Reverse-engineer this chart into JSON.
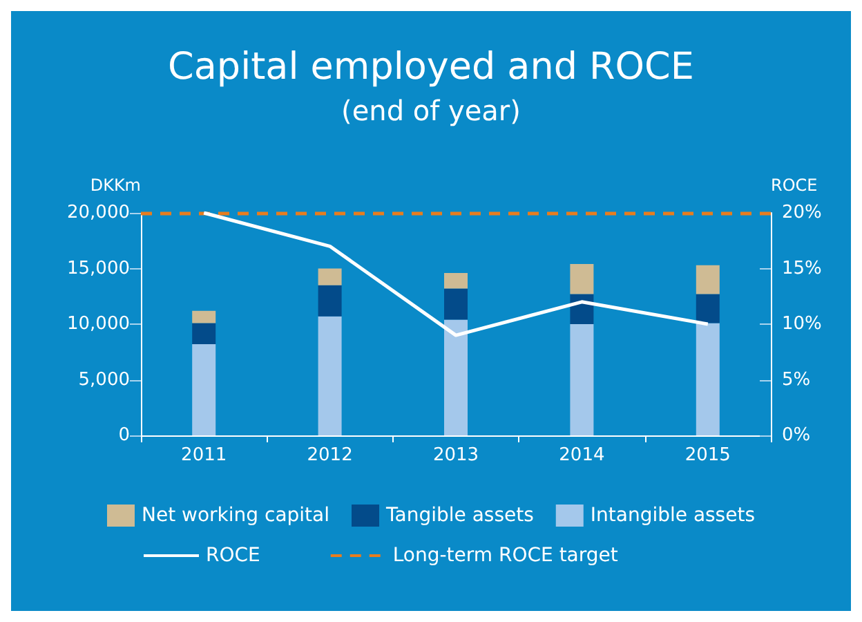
{
  "chart_data": {
    "type": "bar",
    "title": "Capital employed and ROCE",
    "subtitle": "(end of year)",
    "ylabel": "DKKm",
    "y2label": "ROCE",
    "categories": [
      "2011",
      "2012",
      "2013",
      "2014",
      "2015"
    ],
    "stacked": true,
    "series": [
      {
        "name": "Intangible assets",
        "color": "#a4c8eb",
        "values": [
          8200,
          10700,
          10400,
          10000,
          10100
        ]
      },
      {
        "name": "Tangible assets",
        "color": "#034b8a",
        "values": [
          1900,
          2800,
          2800,
          2700,
          2600
        ]
      },
      {
        "name": "Net working capital",
        "color": "#cfbb94",
        "values": [
          1100,
          1500,
          1400,
          2700,
          2600
        ]
      },
      {
        "name": "ROCE",
        "type": "line",
        "axis": "y2",
        "color": "#ffffff",
        "line_style": "solid",
        "values": [
          20,
          17,
          9,
          12,
          10
        ]
      }
    ],
    "ylim": [
      0,
      20000
    ],
    "yticks": [
      0,
      {
        "value": 5000,
        "label": "5,000"
      },
      {
        "value": 10000,
        "label": "10,000"
      },
      {
        "value": 15000,
        "label": "15,000"
      },
      {
        "value": 20000,
        "label": "20,000"
      }
    ],
    "y2lim": [
      0,
      20
    ],
    "y2ticks": [
      {
        "value": 0,
        "label": "0%"
      },
      {
        "value": 5,
        "label": "5%"
      },
      {
        "value": 10,
        "label": "10%"
      },
      {
        "value": 15,
        "label": "15%"
      },
      {
        "value": 20,
        "label": "20%"
      }
    ],
    "ref_lines": [
      {
        "axis": "y2",
        "value": 20,
        "label": "Long-term ROCE target",
        "color": "#e87d1e",
        "line_style": "dashed"
      }
    ],
    "grid": false,
    "legend": "bottom"
  }
}
